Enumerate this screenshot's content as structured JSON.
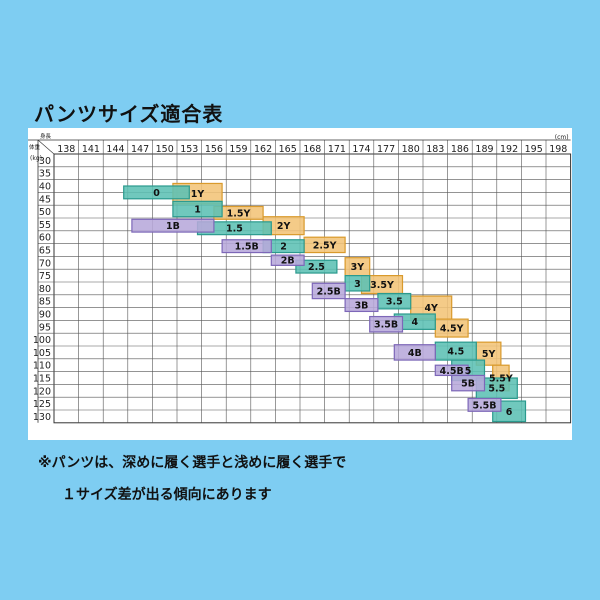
{
  "page": {
    "title": "パンツサイズ適合表",
    "note_line1": "※パンツは、深めに履く選手と浅めに履く選手で",
    "note_line2": "１サイズ差が出る傾向にあります"
  },
  "chart_data": {
    "type": "table",
    "title": "パンツサイズ適合表",
    "corner_labels": {
      "x": "身長",
      "y": "体重"
    },
    "x_unit": "(cm)",
    "y_unit": "(kg)",
    "x_ticks": [
      138,
      141,
      144,
      147,
      150,
      153,
      156,
      159,
      162,
      165,
      168,
      171,
      174,
      177,
      180,
      183,
      186,
      189,
      192,
      195,
      198
    ],
    "y_ticks": [
      30,
      35,
      40,
      45,
      50,
      55,
      60,
      65,
      70,
      75,
      80,
      85,
      90,
      95,
      100,
      105,
      110,
      115,
      120,
      125,
      130
    ],
    "series": [
      {
        "name": "Y",
        "color": "#f3c477",
        "stroke": "#d99a2c"
      },
      {
        "name": "",
        "color": "#5cc0b4",
        "stroke": "#2b9a8e"
      },
      {
        "name": "B",
        "color": "#b7a9db",
        "stroke": "#7d67b8"
      }
    ],
    "regions": [
      {
        "label": "0",
        "series": "",
        "x": [
          145,
          153
        ],
        "y": [
          40,
          45
        ]
      },
      {
        "label": "1Y",
        "series": "Y",
        "x": [
          151,
          157
        ],
        "y": [
          39,
          47
        ]
      },
      {
        "label": "1",
        "series": "",
        "x": [
          151,
          157
        ],
        "y": [
          46,
          52
        ]
      },
      {
        "label": "1.5Y",
        "series": "Y",
        "x": [
          156,
          162
        ],
        "y": [
          48,
          53
        ]
      },
      {
        "label": "1B",
        "series": "B",
        "x": [
          146,
          156
        ],
        "y": [
          53,
          58
        ]
      },
      {
        "label": "1.5",
        "series": "",
        "x": [
          154,
          163
        ],
        "y": [
          54,
          59
        ]
      },
      {
        "label": "2Y",
        "series": "Y",
        "x": [
          162,
          167
        ],
        "y": [
          52,
          59
        ]
      },
      {
        "label": "1.5B",
        "series": "B",
        "x": [
          157,
          163
        ],
        "y": [
          61,
          66
        ]
      },
      {
        "label": "2",
        "series": "",
        "x": [
          162,
          167
        ],
        "y": [
          61,
          66
        ]
      },
      {
        "label": "2.5Y",
        "series": "Y",
        "x": [
          167,
          172
        ],
        "y": [
          60,
          66
        ]
      },
      {
        "label": "2B",
        "series": "B",
        "x": [
          163,
          167
        ],
        "y": [
          67,
          71
        ]
      },
      {
        "label": "2.5",
        "series": "",
        "x": [
          166,
          171
        ],
        "y": [
          69,
          74
        ]
      },
      {
        "label": "3Y",
        "series": "Y",
        "x": [
          172,
          175
        ],
        "y": [
          68,
          75
        ]
      },
      {
        "label": "2.5B",
        "series": "B",
        "x": [
          168,
          172
        ],
        "y": [
          78,
          84
        ]
      },
      {
        "label": "3",
        "series": "",
        "x": [
          172,
          175
        ],
        "y": [
          75,
          81
        ]
      },
      {
        "label": "3.5Y",
        "series": "Y",
        "x": [
          174,
          179
        ],
        "y": [
          75,
          82
        ]
      },
      {
        "label": "3B",
        "series": "B",
        "x": [
          172,
          176
        ],
        "y": [
          84,
          89
        ]
      },
      {
        "label": "3.5",
        "series": "",
        "x": [
          176,
          180
        ],
        "y": [
          82,
          88
        ]
      },
      {
        "label": "4Y",
        "series": "Y",
        "x": [
          180,
          185
        ],
        "y": [
          83,
          92
        ]
      },
      {
        "label": "3.5B",
        "series": "B",
        "x": [
          175,
          179
        ],
        "y": [
          91,
          97
        ]
      },
      {
        "label": "4",
        "series": "",
        "x": [
          178,
          183
        ],
        "y": [
          90,
          96
        ]
      },
      {
        "label": "4.5Y",
        "series": "Y",
        "x": [
          183,
          187
        ],
        "y": [
          92,
          99
        ]
      },
      {
        "label": "4B",
        "series": "B",
        "x": [
          178,
          183
        ],
        "y": [
          102,
          108
        ]
      },
      {
        "label": "4.5",
        "series": "",
        "x": [
          183,
          188
        ],
        "y": [
          101,
          108
        ]
      },
      {
        "label": "5Y",
        "series": "Y",
        "x": [
          188,
          191
        ],
        "y": [
          101,
          110
        ]
      },
      {
        "label": "4.5B",
        "series": "B",
        "x": [
          183,
          187
        ],
        "y": [
          110,
          114
        ]
      },
      {
        "label": "5",
        "series": "",
        "x": [
          185,
          189
        ],
        "y": [
          108,
          116
        ]
      },
      {
        "label": "5.5Y",
        "series": "Y",
        "x": [
          190,
          192
        ],
        "y": [
          110,
          120
        ]
      },
      {
        "label": "5B",
        "series": "B",
        "x": [
          185,
          189
        ],
        "y": [
          114,
          120
        ]
      },
      {
        "label": "5.5",
        "series": "",
        "x": [
          188,
          193
        ],
        "y": [
          115,
          123
        ]
      },
      {
        "label": "5.5B",
        "series": "B",
        "x": [
          187,
          191
        ],
        "y": [
          123,
          128
        ]
      },
      {
        "label": "6",
        "series": "",
        "x": [
          190,
          194
        ],
        "y": [
          124,
          132
        ]
      }
    ]
  }
}
